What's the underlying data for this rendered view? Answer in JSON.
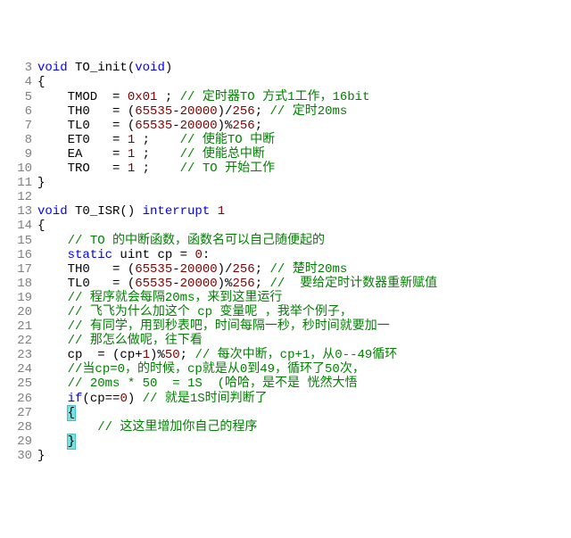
{
  "editor": {
    "font_family": "Courier New",
    "font_size": 14,
    "background_color": "#ffffff",
    "gutter_color": "#808080",
    "colors": {
      "keyword": "#0000ff",
      "number": "#800000",
      "comment": "#008000",
      "text": "#000000",
      "highlight_bg": "#77e0e0",
      "highlight_border": "#44c0c0"
    },
    "first_line": 3,
    "lines": [
      {
        "n": 3,
        "tokens": [
          [
            "kw",
            "void"
          ],
          [
            "txt",
            " TO_init("
          ],
          [
            "kw",
            "void"
          ],
          [
            "txt",
            ")"
          ]
        ]
      },
      {
        "n": 4,
        "tokens": [
          [
            "txt",
            "{"
          ]
        ]
      },
      {
        "n": 5,
        "tokens": [
          [
            "txt",
            "    TMOD  = "
          ],
          [
            "num",
            "0x01"
          ],
          [
            "txt",
            " ; "
          ],
          [
            "cmt",
            "// 定时器TO 方式1工作，16bit"
          ]
        ]
      },
      {
        "n": 6,
        "tokens": [
          [
            "txt",
            "    TH0   = ("
          ],
          [
            "num",
            "65535"
          ],
          [
            "txt",
            "-"
          ],
          [
            "num",
            "20000"
          ],
          [
            "txt",
            ")/"
          ],
          [
            "num",
            "256"
          ],
          [
            "txt",
            "; "
          ],
          [
            "cmt",
            "// 定时20ms"
          ]
        ]
      },
      {
        "n": 7,
        "tokens": [
          [
            "txt",
            "    TL0   = ("
          ],
          [
            "num",
            "65535"
          ],
          [
            "txt",
            "-"
          ],
          [
            "num",
            "20000"
          ],
          [
            "txt",
            ")%"
          ],
          [
            "num",
            "256"
          ],
          [
            "txt",
            ";"
          ]
        ]
      },
      {
        "n": 8,
        "tokens": [
          [
            "txt",
            "    ET0   = "
          ],
          [
            "num",
            "1"
          ],
          [
            "txt",
            " ;    "
          ],
          [
            "cmt",
            "// 使能TO 中断"
          ]
        ]
      },
      {
        "n": 9,
        "tokens": [
          [
            "txt",
            "    EA    = "
          ],
          [
            "num",
            "1"
          ],
          [
            "txt",
            " ;    "
          ],
          [
            "cmt",
            "// 使能总中断"
          ]
        ]
      },
      {
        "n": 10,
        "tokens": [
          [
            "txt",
            "    TRO   = "
          ],
          [
            "num",
            "1"
          ],
          [
            "txt",
            " ;    "
          ],
          [
            "cmt",
            "// TO 开始工作"
          ]
        ]
      },
      {
        "n": 11,
        "tokens": [
          [
            "txt",
            "}"
          ]
        ]
      },
      {
        "n": 12,
        "tokens": [
          [
            "txt",
            ""
          ]
        ]
      },
      {
        "n": 13,
        "tokens": [
          [
            "kw",
            "void"
          ],
          [
            "txt",
            " T0_ISR() "
          ],
          [
            "kw",
            "interrupt"
          ],
          [
            "txt",
            " "
          ],
          [
            "num",
            "1"
          ]
        ]
      },
      {
        "n": 14,
        "tokens": [
          [
            "txt",
            "{"
          ]
        ]
      },
      {
        "n": 15,
        "tokens": [
          [
            "txt",
            "    "
          ],
          [
            "cmt",
            "// TO 的中断函数，函数名可以自己随便起的"
          ]
        ]
      },
      {
        "n": 16,
        "tokens": [
          [
            "txt",
            "    "
          ],
          [
            "kw",
            "static"
          ],
          [
            "txt",
            " uint cp = "
          ],
          [
            "num",
            "0"
          ],
          [
            "txt",
            ":"
          ]
        ]
      },
      {
        "n": 17,
        "tokens": [
          [
            "txt",
            "    TH0   = ("
          ],
          [
            "num",
            "65535"
          ],
          [
            "txt",
            "-"
          ],
          [
            "num",
            "20000"
          ],
          [
            "txt",
            ")/"
          ],
          [
            "num",
            "256"
          ],
          [
            "txt",
            "; "
          ],
          [
            "cmt",
            "// 楚时20ms"
          ]
        ]
      },
      {
        "n": 18,
        "tokens": [
          [
            "txt",
            "    TL0   = ("
          ],
          [
            "num",
            "65535"
          ],
          [
            "txt",
            "-"
          ],
          [
            "num",
            "20000"
          ],
          [
            "txt",
            ")%"
          ],
          [
            "num",
            "256"
          ],
          [
            "txt",
            "; "
          ],
          [
            "cmt",
            "//  要给定时计数器重新赋值"
          ]
        ]
      },
      {
        "n": 19,
        "tokens": [
          [
            "txt",
            "    "
          ],
          [
            "cmt",
            "// 程序就会每隔20ms，来到这里运行"
          ]
        ]
      },
      {
        "n": 20,
        "tokens": [
          [
            "txt",
            "    "
          ],
          [
            "cmt",
            "// 飞飞为什么加这个 cp 变量呢 ，我举个例子，"
          ]
        ]
      },
      {
        "n": 21,
        "tokens": [
          [
            "txt",
            "    "
          ],
          [
            "cmt",
            "// 有同学，用到秒表吧，时间每隔一秒，秒时间就要加一"
          ]
        ]
      },
      {
        "n": 22,
        "tokens": [
          [
            "txt",
            "    "
          ],
          [
            "cmt",
            "// 那怎么做呢，往下看"
          ]
        ]
      },
      {
        "n": 23,
        "tokens": [
          [
            "txt",
            "    cp  = (cp+"
          ],
          [
            "num",
            "1"
          ],
          [
            "txt",
            ")%"
          ],
          [
            "num",
            "50"
          ],
          [
            "txt",
            "; "
          ],
          [
            "cmt",
            "// 每次中断，cp+1，从0--49循环"
          ]
        ]
      },
      {
        "n": 24,
        "tokens": [
          [
            "txt",
            "    "
          ],
          [
            "cmt",
            "//当cp=0，的时候，cp就是从0到49，循环了50次，"
          ]
        ]
      },
      {
        "n": 25,
        "tokens": [
          [
            "txt",
            "    "
          ],
          [
            "cmt",
            "// 20ms * 50  = 1S  (哈哈，是不是 恍然大悟"
          ]
        ]
      },
      {
        "n": 26,
        "tokens": [
          [
            "txt",
            "    "
          ],
          [
            "kw",
            "if"
          ],
          [
            "txt",
            "(cp=="
          ],
          [
            "num",
            "0"
          ],
          [
            "txt",
            ") "
          ],
          [
            "cmt",
            "// 就是1S时间判断了"
          ]
        ]
      },
      {
        "n": 27,
        "tokens": [
          [
            "txt",
            "    "
          ],
          [
            "hl",
            "{"
          ]
        ]
      },
      {
        "n": 28,
        "tokens": [
          [
            "txt",
            "        "
          ],
          [
            "cmt",
            "// 这这里增加你自己的程序"
          ]
        ]
      },
      {
        "n": 29,
        "tokens": [
          [
            "txt",
            "    "
          ],
          [
            "hl",
            "}"
          ]
        ]
      },
      {
        "n": 30,
        "tokens": [
          [
            "txt",
            "}"
          ]
        ]
      }
    ]
  }
}
